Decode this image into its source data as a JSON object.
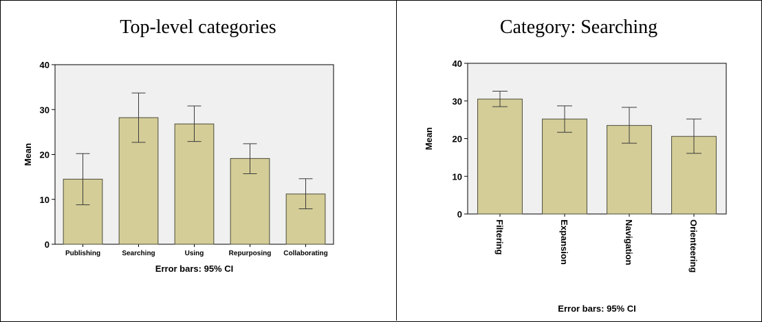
{
  "panels": {
    "left_title": "Top-level categories",
    "right_title": "Category: Searching"
  },
  "colors": {
    "bar_fill": "#d4cd97",
    "bar_stroke": "#4a4a3a",
    "plot_bg": "#f0f0f0",
    "error_bar": "#3a3a3a"
  },
  "chart_data": [
    {
      "type": "bar",
      "title": "",
      "xlabel": "",
      "ylabel": "Mean",
      "ylim": [
        0,
        40
      ],
      "yticks": [
        0,
        10,
        20,
        30,
        40
      ],
      "grid": false,
      "note": "Error bars: 95% CI",
      "categories": [
        "Publishing",
        "Searching",
        "Using",
        "Repurposing",
        "Collaborating"
      ],
      "values": [
        14.5,
        28.2,
        26.8,
        19.1,
        11.2
      ],
      "ci_low": [
        8.8,
        22.7,
        22.9,
        15.7,
        7.9
      ],
      "ci_high": [
        20.2,
        33.7,
        30.8,
        22.4,
        14.6
      ]
    },
    {
      "type": "bar",
      "title": "",
      "xlabel": "",
      "ylabel": "Mean",
      "ylim": [
        0,
        40
      ],
      "yticks": [
        0,
        10,
        20,
        30,
        40
      ],
      "grid": false,
      "note": "Error bars: 95% CI",
      "categories": [
        "Filtering",
        "Expansion",
        "Navigation",
        "Orienteering"
      ],
      "values": [
        30.5,
        25.2,
        23.5,
        20.6
      ],
      "ci_low": [
        28.5,
        21.7,
        18.8,
        16.1
      ],
      "ci_high": [
        32.6,
        28.7,
        28.3,
        25.2
      ]
    }
  ]
}
